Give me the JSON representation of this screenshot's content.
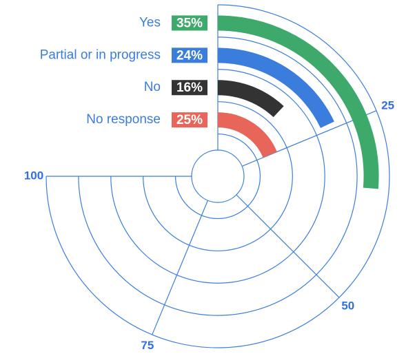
{
  "chart_data": {
    "type": "radial_bar",
    "categories": [
      "Yes",
      "Partial or in progress",
      "No",
      "No response"
    ],
    "values": [
      35,
      24,
      16,
      25
    ],
    "value_labels": [
      "35%",
      "24%",
      "16%",
      "25%"
    ],
    "colors": [
      "#3daa6c",
      "#3b7ddd",
      "#333333",
      "#e8655a"
    ],
    "ylim": [
      0,
      100
    ],
    "yticks": [
      25,
      50,
      75,
      100
    ],
    "grid": true
  }
}
